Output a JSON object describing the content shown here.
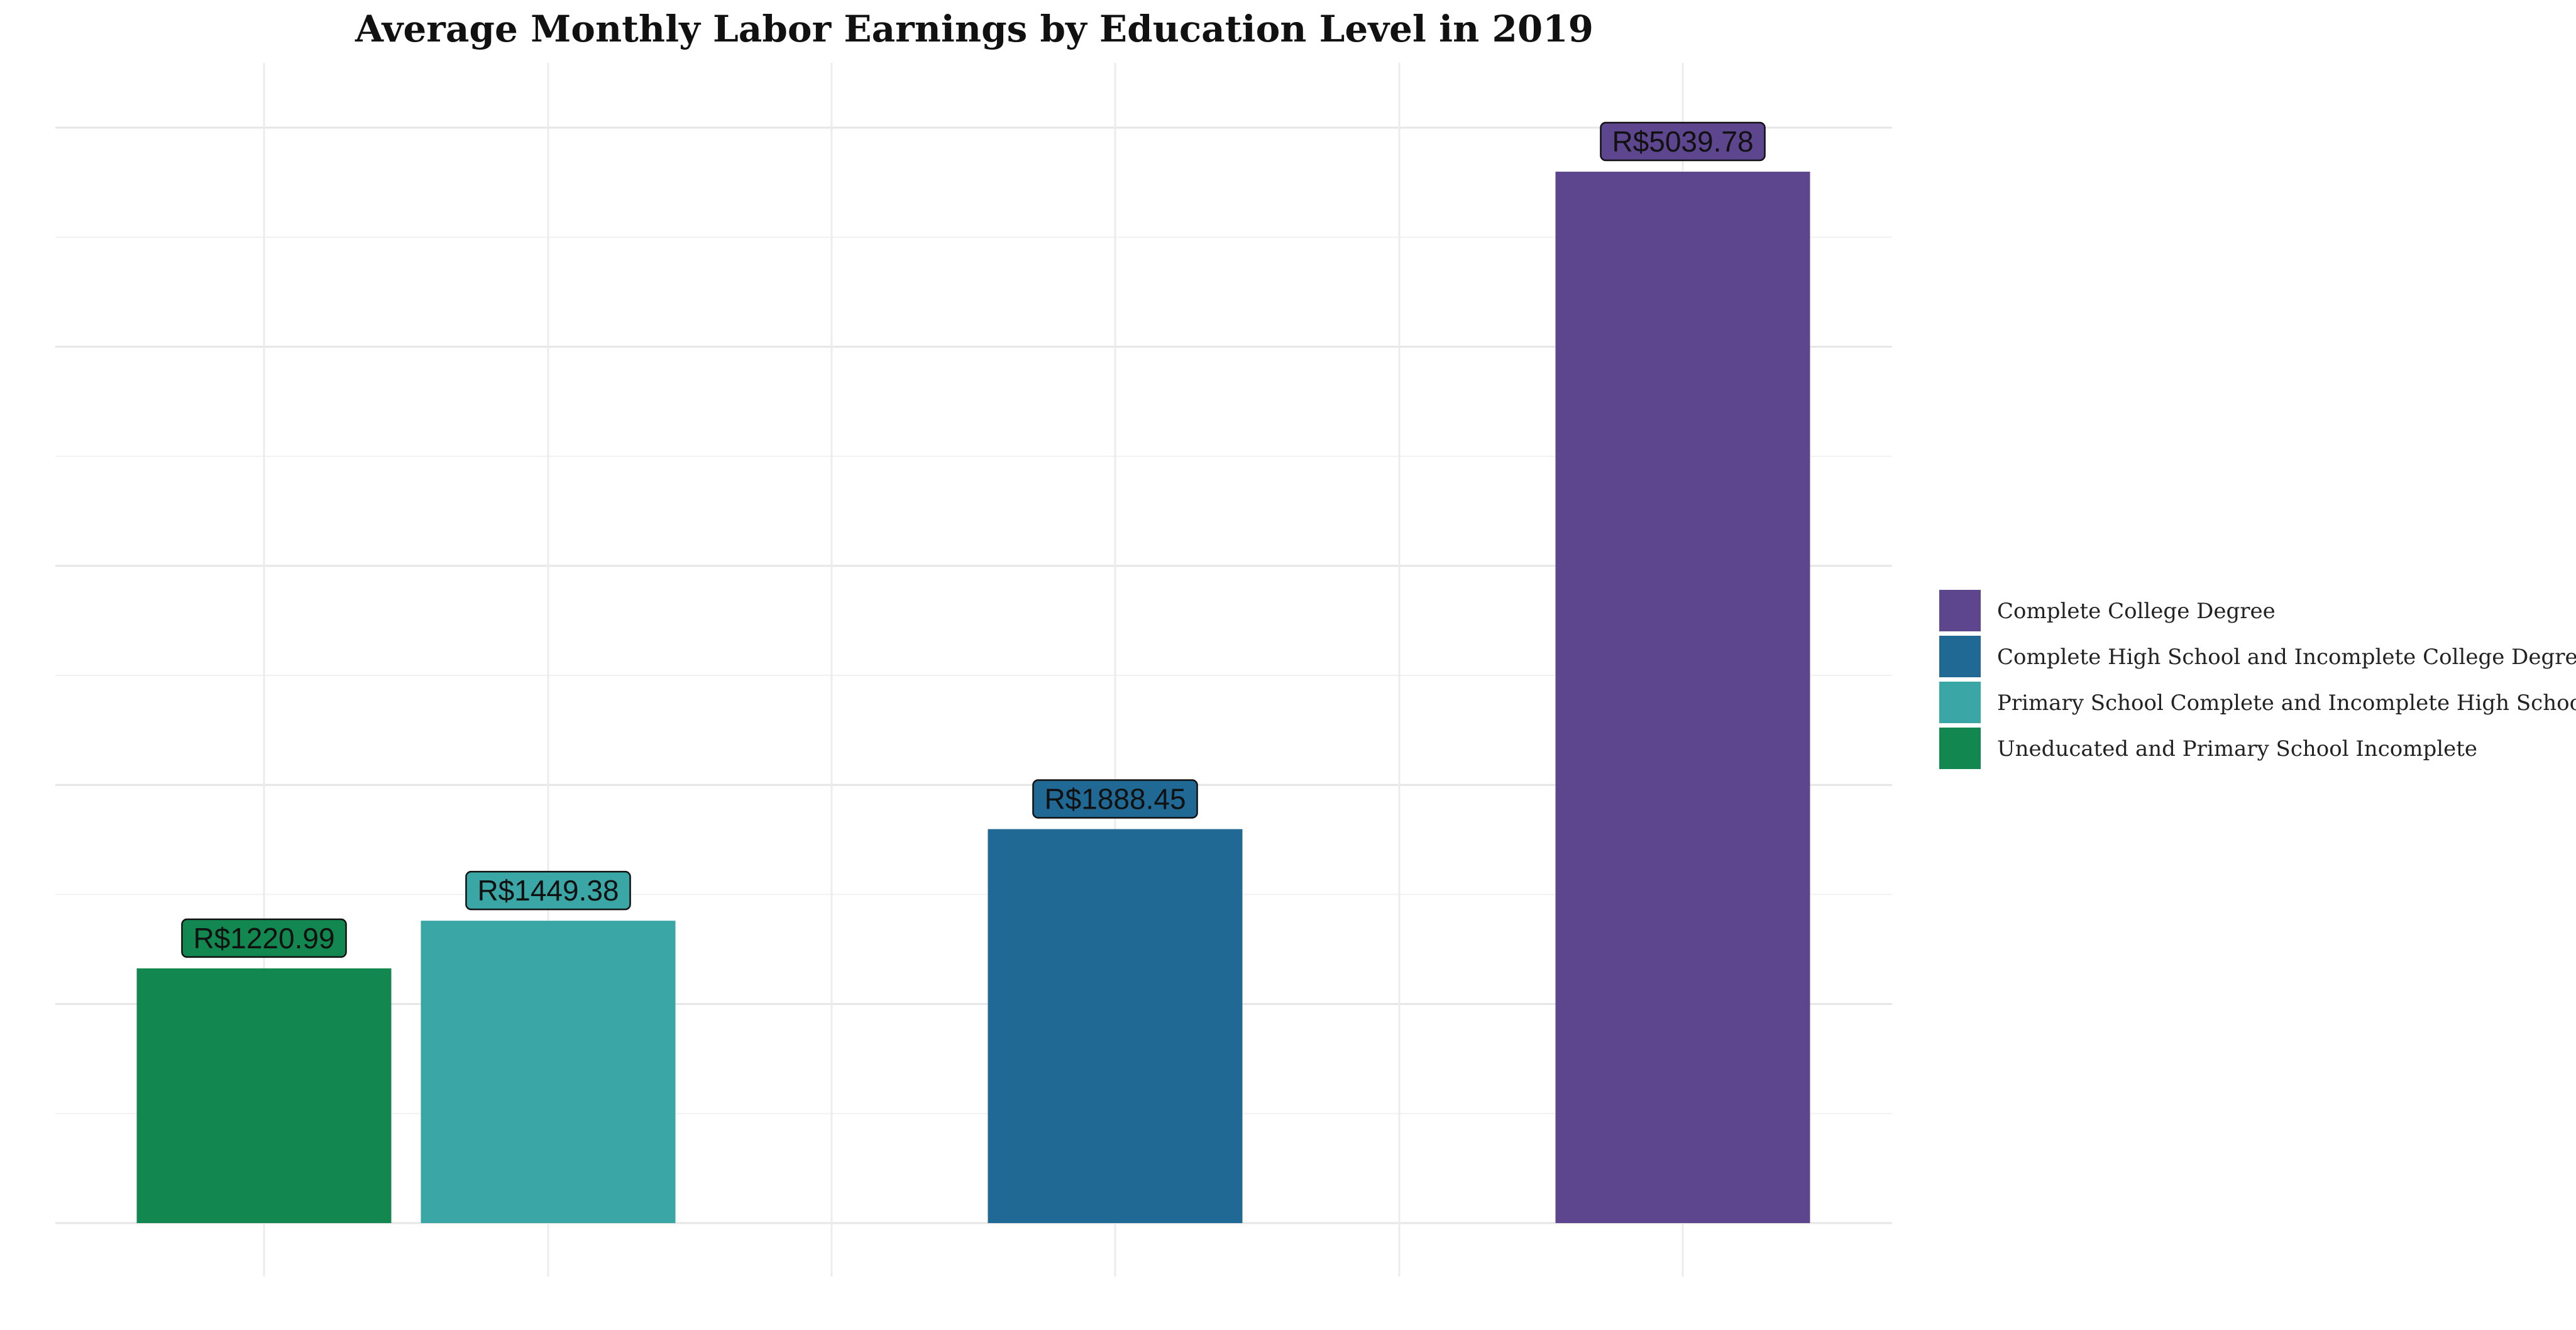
{
  "chart_data": {
    "type": "bar",
    "title": "Average Monthly Labor Earnings by Education Level in 2019",
    "xlabel": "",
    "ylabel": "",
    "ylim": [
      0,
      5290
    ],
    "grid": true,
    "legend_position": "right",
    "label_prefix": "R$",
    "bars": [
      {
        "category": "Uneducated and Primary School Incomplete",
        "value": 1220.99,
        "label": "R$1220.99",
        "color": "#138750",
        "slot": 1
      },
      {
        "category": "Primary School Complete and Incomplete High School",
        "value": 1449.38,
        "label": "R$1449.38",
        "color": "#3aa6a6",
        "slot": 2
      },
      {
        "category": "Complete High School and Incomplete College Degree",
        "value": 1888.45,
        "label": "R$1888.45",
        "color": "#1f6994",
        "slot": 4
      },
      {
        "category": "Complete College Degree",
        "value": 5039.78,
        "label": "R$5039.78",
        "color": "#5e468e",
        "slot": 6
      }
    ],
    "legend": [
      {
        "label": "Complete College Degree",
        "color": "#5e468e"
      },
      {
        "label": "Complete High School and Incomplete College Degree",
        "color": "#1f6994"
      },
      {
        "label": "Primary School Complete and Incomplete High School",
        "color": "#3aa6a6"
      },
      {
        "label": "Uneducated and Primary School Incomplete",
        "color": "#138750"
      }
    ]
  }
}
